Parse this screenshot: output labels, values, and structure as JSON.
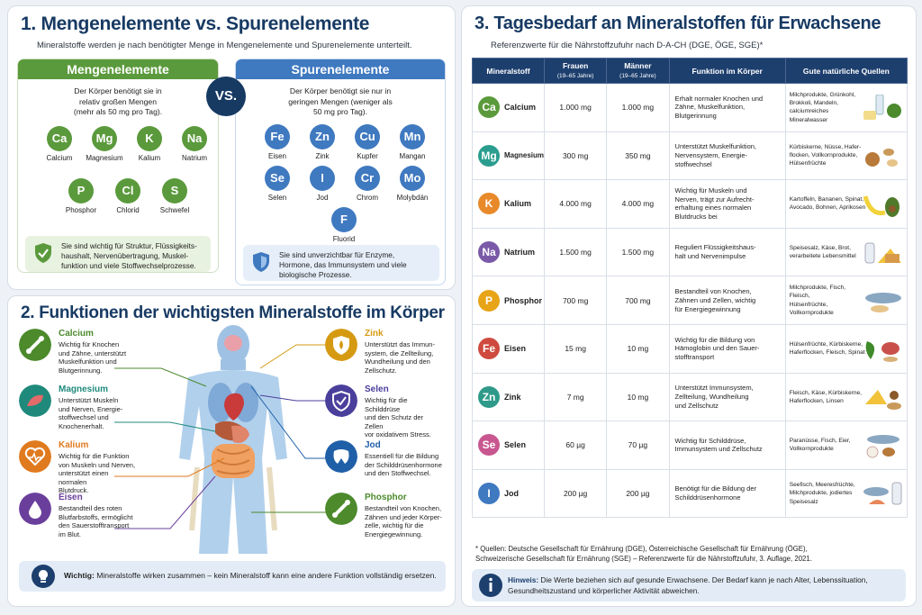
{
  "s1": {
    "title": "1. Mengenelemente vs. Spurenelemente",
    "subtitle": "Mineralstoffe werden je nach benötigter Menge in Mengenelemente und Spurenelemente unterteilt.",
    "vs": "VS.",
    "macro": {
      "title": "Mengenelemente",
      "desc1": "Der Körper benötigt sie in",
      "desc2": "relativ großen Mengen",
      "desc3": "(mehr als 50 mg pro Tag).",
      "color": "#5b9a3c",
      "elements": [
        {
          "sym": "Ca",
          "name": "Calcium"
        },
        {
          "sym": "Mg",
          "name": "Magnesium"
        },
        {
          "sym": "K",
          "name": "Kalium"
        },
        {
          "sym": "Na",
          "name": "Natrium"
        },
        {
          "sym": "P",
          "name": "Phosphor"
        },
        {
          "sym": "Cl",
          "name": "Chlorid"
        },
        {
          "sym": "S",
          "name": "Schwefel"
        }
      ],
      "note1": "Sie sind wichtig für Struktur, Flüssigkeits-",
      "note2": "haushalt, Nervenübertragung, Muskel-",
      "note3": "funktion und viele Stoffwechselprozesse."
    },
    "trace": {
      "title": "Spurenelemente",
      "desc1": "Der Körper benötigt sie nur in",
      "desc2": "geringen Mengen (weniger als",
      "desc3": "50 mg pro Tag).",
      "color": "#3f79c0",
      "elements": [
        {
          "sym": "Fe",
          "name": "Eisen"
        },
        {
          "sym": "Zn",
          "name": "Zink"
        },
        {
          "sym": "Cu",
          "name": "Kupfer"
        },
        {
          "sym": "Mn",
          "name": "Mangan"
        },
        {
          "sym": "Se",
          "name": "Selen"
        },
        {
          "sym": "I",
          "name": "Jod"
        },
        {
          "sym": "Cr",
          "name": "Chrom"
        },
        {
          "sym": "Mo",
          "name": "Molybdän"
        },
        {
          "sym": "F",
          "name": "Fluorid"
        }
      ],
      "note1": "Sie sind unverzichtbar für Enzyme,",
      "note2": "Hormone, das Immunsystem und viele",
      "note3": "biologische Prozesse."
    }
  },
  "s2": {
    "title": "2. Funktionen der wichtigsten Mineralstoffe im Körper",
    "left": [
      {
        "name": "Calcium",
        "color": "#4c8a2c",
        "d": [
          "Wichtig für Knochen",
          "und Zähne, unterstützt",
          "Muskelfunktion und",
          "Blutgerinnung."
        ]
      },
      {
        "name": "Magnesium",
        "color": "#1f8a7c",
        "d": [
          "Unterstützt Muskeln",
          "und Nerven, Energie-",
          "stoffwechsel und",
          "Knochenerhalt."
        ]
      },
      {
        "name": "Kalium",
        "color": "#e07a1f",
        "d": [
          "Wichtig für die Funktion",
          "von Muskeln und Nerven,",
          "unterstützt einen normalen",
          "Blutdruck."
        ]
      },
      {
        "name": "Eisen",
        "color": "#6a3f9c",
        "d": [
          "Bestandteil des roten",
          "Blutfarbstoffs, ermöglicht",
          "den Sauerstofftransport",
          "im Blut."
        ]
      }
    ],
    "right": [
      {
        "name": "Zink",
        "color": "#d59a12",
        "d": [
          "Unterstützt das Immun-",
          "system, die Zellteilung,",
          "Wundheilung und den",
          "Zellschutz."
        ]
      },
      {
        "name": "Selen",
        "color": "#4b3f9c",
        "d": [
          "Wichtig für die Schilddrüse",
          "und den Schutz der Zellen",
          "vor oxidativem Stress."
        ]
      },
      {
        "name": "Jod",
        "color": "#1f5fa8",
        "d": [
          "Essentiell für die Bildung",
          "der Schilddrüsenhormone",
          "und den Stoffwechsel."
        ]
      },
      {
        "name": "Phosphor",
        "color": "#4c8a2c",
        "d": [
          "Bestandteil von Knochen,",
          "Zähnen und jeder Körper-",
          "zelle, wichtig für die",
          "Energiegewinnung."
        ]
      }
    ],
    "tip_bold": "Wichtig:",
    "tip": " Mineralstoffe wirken zusammen – kein Mineralstoff kann eine andere Funktion vollständig ersetzen."
  },
  "s3": {
    "title": "3. Tagesbedarf an Mineralstoffen für Erwachsene",
    "subtitle": "Referenzwerte für die Nährstoffzufuhr nach D-A-CH (DGE, ÖGE, SGE)*",
    "headers": {
      "mineral": "Mineralstoff",
      "women": "Frauen",
      "women_sub": "(19–65 Jahre)",
      "men": "Männer",
      "men_sub": "(19–65 Jahre)",
      "function": "Funktion im Körper",
      "sources": "Gute natürliche Quellen"
    },
    "rows": [
      {
        "sym": "Ca",
        "name": "Calcium",
        "color": "#5b9a3c",
        "w": "1.000 mg",
        "m": "1.000 mg",
        "f": [
          "Erhalt normaler Knochen und",
          "Zähne, Muskelfunktion,",
          "Blutgerinnung"
        ],
        "q": [
          "Milchprodukte, Grünkohl,",
          "Brokkoli, Mandeln,",
          "calciumreiches Mineralwasser"
        ]
      },
      {
        "sym": "Mg",
        "name": "Magnesium",
        "color": "#2a9d8f",
        "w": "300 mg",
        "m": "350 mg",
        "f": [
          "Unterstützt Muskelfunktion,",
          "Nervensystem, Energie-",
          "stoffwechsel"
        ],
        "q": [
          "Kürbiskerne, Nüsse, Hafer-",
          "flocken, Vollkornprodukte,",
          "Hülsenfrüchte"
        ]
      },
      {
        "sym": "K",
        "name": "Kalium",
        "color": "#e8892a",
        "w": "4.000 mg",
        "m": "4.000 mg",
        "f": [
          "Wichtig für Muskeln und",
          "Nerven, trägt zur Aufrecht-",
          "erhaltung eines normalen",
          "Blutdrucks bei"
        ],
        "q": [
          "Kartoffeln, Bananen, Spinat,",
          "Avocado, Bohnen, Aprikosen"
        ]
      },
      {
        "sym": "Na",
        "name": "Natrium",
        "color": "#7a5aa8",
        "w": "1.500 mg",
        "m": "1.500 mg",
        "f": [
          "Reguliert Flüssigkeitshaus-",
          "halt und Nervenimpulse"
        ],
        "q": [
          "Speisesalz, Käse, Brot,",
          "verarbeitete Lebensmittel"
        ]
      },
      {
        "sym": "P",
        "name": "Phosphor",
        "color": "#e8a417",
        "w": "700 mg",
        "m": "700 mg",
        "f": [
          "Bestandteil von Knochen,",
          "Zähnen und Zellen, wichtig",
          "für Energiegewinnung"
        ],
        "q": [
          "Milchprodukte, Fisch, Fleisch,",
          "Hülsenfrüchte, Vollkornprodukte"
        ]
      },
      {
        "sym": "Fe",
        "name": "Eisen",
        "color": "#cf4a3e",
        "w": "15 mg",
        "m": "10 mg",
        "f": [
          "Wichtig für die Bildung von",
          "Hämoglobin und den Sauer-",
          "stofftransport"
        ],
        "q": [
          "Hülsenfrüchte, Kürbiskerne,",
          "Haferflocken, Fleisch, Spinat"
        ]
      },
      {
        "sym": "Zn",
        "name": "Zink",
        "color": "#2f9a8a",
        "w": "7 mg",
        "m": "10 mg",
        "f": [
          "Unterstützt Immunsystem,",
          "Zellteilung, Wundheilung",
          "und Zellschutz"
        ],
        "q": [
          "Fleisch, Käse, Kürbiskerne,",
          "Haferflocken, Linsen"
        ]
      },
      {
        "sym": "Se",
        "name": "Selen",
        "color": "#c8578f",
        "w": "60 µg",
        "m": "70 µg",
        "f": [
          "Wichtig für Schilddrüse,",
          "Immunsystem und Zellschutz"
        ],
        "q": [
          "Paranüsse, Fisch, Eier,",
          "Vollkornprodukte"
        ]
      },
      {
        "sym": "I",
        "name": "Jod",
        "color": "#3f79c0",
        "w": "200 µg",
        "m": "200 µg",
        "f": [
          "Benötigt für die Bildung der",
          "Schilddrüsenhormone"
        ],
        "q": [
          "Seefisch, Meeresfrüchte,",
          "Milchprodukte, jodiertes",
          "Speisesalz"
        ]
      }
    ],
    "footnote1": "* Quellen: Deutsche Gesellschaft für Ernährung (DGE), Österreichische Gesellschaft für Ernährung (ÖGE),",
    "footnote2": "Schweizerische Gesellschaft für Ernährung (SGE) – Referenzwerte für die Nährstoffzufuhr, 3. Auflage, 2021.",
    "hint_bold": "Hinweis:",
    "hint1": " Die Werte beziehen sich auf gesunde Erwachsene. Der Bedarf kann je nach Alter, Lebenssituation,",
    "hint2": "Gesundheitszustand und körperlicher Aktivität abweichen."
  }
}
